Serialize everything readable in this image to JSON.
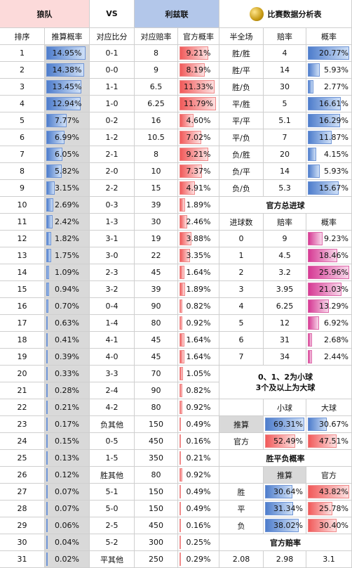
{
  "header": {
    "home_team": "狼队",
    "vs": "VS",
    "away_team": "利兹联",
    "analysis_title": "比赛数据分析表"
  },
  "left_table": {
    "columns": [
      "排序",
      "推算概率",
      "对应比分",
      "对应赔率",
      "官方概率"
    ],
    "rows": [
      {
        "rank": "1",
        "calc": "14.95%",
        "score": "0-1",
        "odds": "8",
        "official": "9.21%"
      },
      {
        "rank": "2",
        "calc": "14.38%",
        "score": "0-0",
        "odds": "9",
        "official": "8.19%"
      },
      {
        "rank": "3",
        "calc": "13.45%",
        "score": "1-1",
        "odds": "6.5",
        "official": "11.33%"
      },
      {
        "rank": "4",
        "calc": "12.94%",
        "score": "1-0",
        "odds": "6.25",
        "official": "11.79%"
      },
      {
        "rank": "5",
        "calc": "7.77%",
        "score": "0-2",
        "odds": "16",
        "official": "4.60%"
      },
      {
        "rank": "6",
        "calc": "6.99%",
        "score": "1-2",
        "odds": "10.5",
        "official": "7.02%"
      },
      {
        "rank": "7",
        "calc": "6.05%",
        "score": "2-1",
        "odds": "8",
        "official": "9.21%"
      },
      {
        "rank": "8",
        "calc": "5.82%",
        "score": "2-0",
        "odds": "10",
        "official": "7.37%"
      },
      {
        "rank": "9",
        "calc": "3.15%",
        "score": "2-2",
        "odds": "15",
        "official": "4.91%"
      },
      {
        "rank": "10",
        "calc": "2.69%",
        "score": "0-3",
        "odds": "39",
        "official": "1.89%"
      },
      {
        "rank": "11",
        "calc": "2.42%",
        "score": "1-3",
        "odds": "30",
        "official": "2.46%"
      },
      {
        "rank": "12",
        "calc": "1.82%",
        "score": "3-1",
        "odds": "19",
        "official": "3.88%"
      },
      {
        "rank": "13",
        "calc": "1.75%",
        "score": "3-0",
        "odds": "22",
        "official": "3.35%"
      },
      {
        "rank": "14",
        "calc": "1.09%",
        "score": "2-3",
        "odds": "45",
        "official": "1.64%"
      },
      {
        "rank": "15",
        "calc": "0.94%",
        "score": "3-2",
        "odds": "39",
        "official": "1.89%"
      },
      {
        "rank": "16",
        "calc": "0.70%",
        "score": "0-4",
        "odds": "90",
        "official": "0.82%"
      },
      {
        "rank": "17",
        "calc": "0.63%",
        "score": "1-4",
        "odds": "80",
        "official": "0.92%"
      },
      {
        "rank": "18",
        "calc": "0.41%",
        "score": "4-1",
        "odds": "45",
        "official": "1.64%"
      },
      {
        "rank": "19",
        "calc": "0.39%",
        "score": "4-0",
        "odds": "45",
        "official": "1.64%"
      },
      {
        "rank": "20",
        "calc": "0.33%",
        "score": "3-3",
        "odds": "70",
        "official": "1.05%"
      },
      {
        "rank": "21",
        "calc": "0.28%",
        "score": "2-4",
        "odds": "90",
        "official": "0.82%"
      },
      {
        "rank": "22",
        "calc": "0.21%",
        "score": "4-2",
        "odds": "80",
        "official": "0.92%"
      },
      {
        "rank": "23",
        "calc": "0.17%",
        "score": "负其他",
        "odds": "150",
        "official": "0.49%"
      },
      {
        "rank": "24",
        "calc": "0.15%",
        "score": "0-5",
        "odds": "450",
        "official": "0.16%"
      },
      {
        "rank": "25",
        "calc": "0.13%",
        "score": "1-5",
        "odds": "350",
        "official": "0.21%"
      },
      {
        "rank": "26",
        "calc": "0.12%",
        "score": "胜其他",
        "odds": "80",
        "official": "0.92%"
      },
      {
        "rank": "27",
        "calc": "0.07%",
        "score": "5-1",
        "odds": "150",
        "official": "0.49%"
      },
      {
        "rank": "28",
        "calc": "0.07%",
        "score": "5-0",
        "odds": "150",
        "official": "0.49%"
      },
      {
        "rank": "29",
        "calc": "0.06%",
        "score": "2-5",
        "odds": "450",
        "official": "0.16%"
      },
      {
        "rank": "30",
        "calc": "0.04%",
        "score": "5-2",
        "odds": "300",
        "official": "0.25%"
      },
      {
        "rank": "31",
        "calc": "0.02%",
        "score": "平其他",
        "odds": "250",
        "official": "0.29%"
      }
    ]
  },
  "halffull": {
    "columns": [
      "半全场",
      "赔率",
      "概率"
    ],
    "rows": [
      {
        "label": "胜/胜",
        "odds": "4",
        "prob": "20.77%"
      },
      {
        "label": "胜/平",
        "odds": "14",
        "prob": "5.93%"
      },
      {
        "label": "胜/负",
        "odds": "30",
        "prob": "2.77%"
      },
      {
        "label": "平/胜",
        "odds": "5",
        "prob": "16.61%"
      },
      {
        "label": "平/平",
        "odds": "5.1",
        "prob": "16.29%"
      },
      {
        "label": "平/负",
        "odds": "7",
        "prob": "11.87%"
      },
      {
        "label": "负/胜",
        "odds": "20",
        "prob": "4.15%"
      },
      {
        "label": "负/平",
        "odds": "14",
        "prob": "5.93%"
      },
      {
        "label": "负/负",
        "odds": "5.3",
        "prob": "15.67%"
      }
    ]
  },
  "total_goals": {
    "title": "官方总进球",
    "columns": [
      "进球数",
      "赔率",
      "概率"
    ],
    "rows": [
      {
        "goals": "0",
        "odds": "9",
        "prob": "9.23%"
      },
      {
        "goals": "1",
        "odds": "4.5",
        "prob": "18.46%"
      },
      {
        "goals": "2",
        "odds": "3.2",
        "prob": "25.96%"
      },
      {
        "goals": "3",
        "odds": "3.95",
        "prob": "21.03%"
      },
      {
        "goals": "4",
        "odds": "6.25",
        "prob": "13.29%"
      },
      {
        "goals": "5",
        "odds": "12",
        "prob": "6.92%"
      },
      {
        "goals": "6",
        "odds": "31",
        "prob": "2.68%"
      },
      {
        "goals": "7",
        "odds": "34",
        "prob": "2.44%"
      }
    ]
  },
  "small_big": {
    "note_line1": "0、1、2为小球",
    "note_line2": "3个及以上为大球",
    "col_small": "小球",
    "col_big": "大球",
    "rows": [
      {
        "label": "推算",
        "small": "69.31%",
        "big": "30.67%"
      },
      {
        "label": "官方",
        "small": "52.49%",
        "big": "47.51%"
      }
    ]
  },
  "wdl": {
    "title": "胜平负概率",
    "col_calc": "推算",
    "col_official": "官方",
    "rows": [
      {
        "label": "胜",
        "calc": "30.64%",
        "official": "43.82%"
      },
      {
        "label": "平",
        "calc": "31.34%",
        "official": "25.78%"
      },
      {
        "label": "负",
        "calc": "38.02%",
        "official": "30.40%"
      }
    ]
  },
  "official_odds": {
    "title": "官方赔率",
    "values": [
      "2.08",
      "2.98",
      "3.1"
    ]
  }
}
